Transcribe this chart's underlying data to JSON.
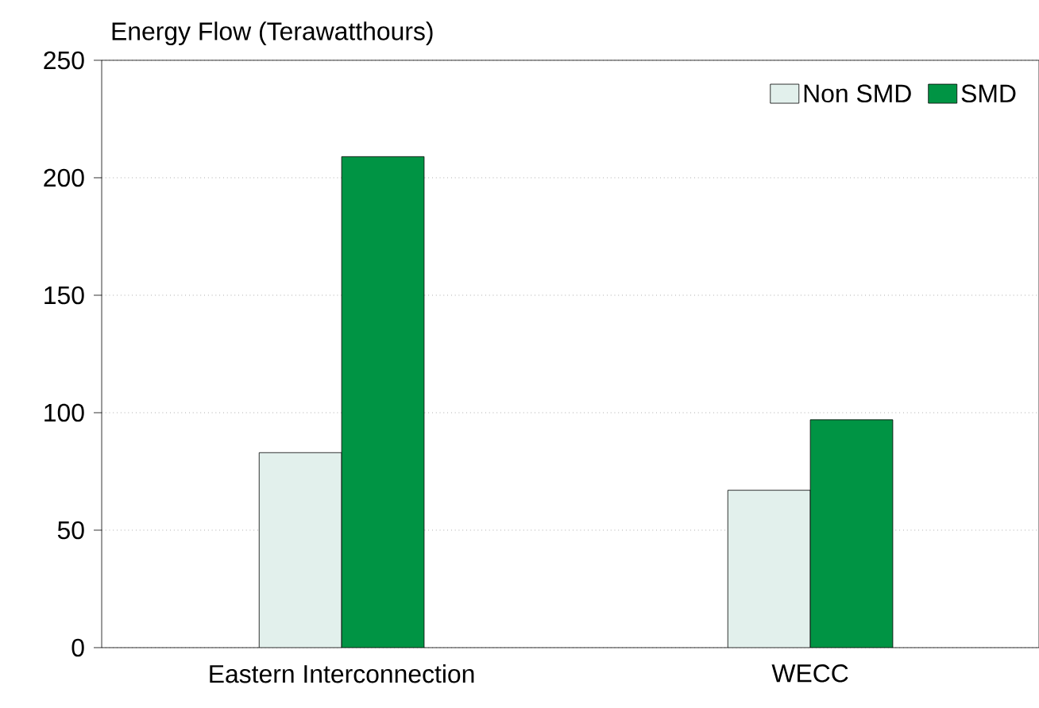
{
  "chart_data": {
    "type": "bar",
    "ylabel": "Energy Flow (Terawatthours)",
    "categories": [
      "Eastern Interconnection",
      "WECC"
    ],
    "series": [
      {
        "name": "Non SMD",
        "color": "#e2f0ec",
        "values": [
          83,
          67
        ]
      },
      {
        "name": "SMD",
        "color": "#009444",
        "values": [
          209,
          97
        ]
      }
    ],
    "ylim": [
      0,
      250
    ],
    "yticks": [
      0,
      50,
      100,
      150,
      200,
      250
    ],
    "grid": "y",
    "legend": "top right"
  }
}
